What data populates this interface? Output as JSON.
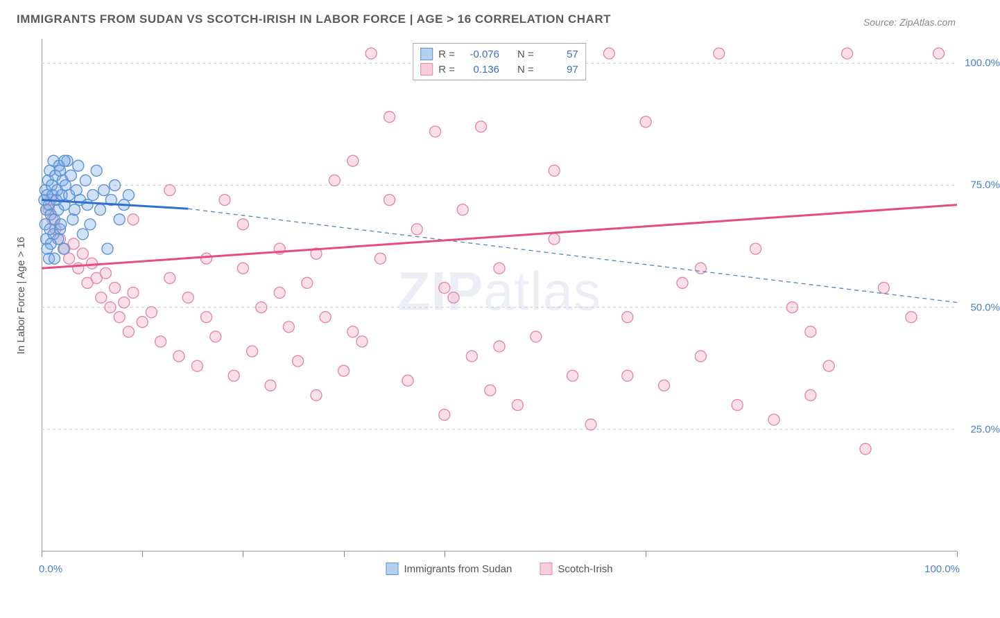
{
  "title": "IMMIGRANTS FROM SUDAN VS SCOTCH-IRISH IN LABOR FORCE | AGE > 16 CORRELATION CHART",
  "source": "Source: ZipAtlas.com",
  "watermark_bold": "ZIP",
  "watermark_rest": "atlas",
  "y_axis_label": "In Labor Force | Age > 16",
  "x_min_label": "0.0%",
  "x_max_label": "100.0%",
  "chart": {
    "type": "scatter",
    "xlim": [
      0,
      100
    ],
    "ylim": [
      0,
      105
    ],
    "y_ticks": [
      25,
      50,
      75,
      100
    ],
    "y_tick_labels": [
      "25.0%",
      "50.0%",
      "75.0%",
      "100.0%"
    ],
    "x_tick_positions": [
      0,
      11,
      22,
      33,
      44,
      66,
      100
    ],
    "grid_color": "#cccccc",
    "border_color": "#999999",
    "background_color": "#ffffff",
    "marker_radius": 8,
    "marker_stroke_width": 1.4,
    "regression_line_width": 3,
    "dashed_line_width": 1.4,
    "series": [
      {
        "name": "Immigrants from Sudan",
        "fill": "rgba(120,170,230,0.35)",
        "stroke": "#5a93d6",
        "swatch_fill": "#b4d2f0",
        "swatch_stroke": "#5a93d6",
        "R": "-0.076",
        "N": "57",
        "regression": {
          "x1": 0,
          "y1": 72,
          "x2": 16,
          "y2": 70.2,
          "color": "#2f6fd0"
        },
        "dashed_ext": {
          "x1": 16,
          "y1": 70.2,
          "x2": 100,
          "y2": 51,
          "color": "#5a8bc8"
        },
        "points": [
          [
            0.3,
            72
          ],
          [
            0.4,
            74
          ],
          [
            0.5,
            70
          ],
          [
            0.6,
            73
          ],
          [
            0.7,
            76
          ],
          [
            0.8,
            71
          ],
          [
            0.9,
            78
          ],
          [
            1.0,
            69
          ],
          [
            1.1,
            75
          ],
          [
            1.2,
            73
          ],
          [
            1.3,
            80
          ],
          [
            1.4,
            68
          ],
          [
            1.5,
            77
          ],
          [
            1.6,
            72
          ],
          [
            1.7,
            74
          ],
          [
            1.8,
            70
          ],
          [
            1.9,
            79
          ],
          [
            2.0,
            66
          ],
          [
            2.1,
            67
          ],
          [
            2.2,
            73
          ],
          [
            2.3,
            76
          ],
          [
            2.4,
            62
          ],
          [
            2.5,
            71
          ],
          [
            2.6,
            75
          ],
          [
            2.8,
            80
          ],
          [
            3.0,
            73
          ],
          [
            3.2,
            77
          ],
          [
            3.4,
            68
          ],
          [
            3.6,
            70
          ],
          [
            3.8,
            74
          ],
          [
            4.0,
            79
          ],
          [
            4.2,
            72
          ],
          [
            4.5,
            65
          ],
          [
            4.8,
            76
          ],
          [
            5.0,
            71
          ],
          [
            5.3,
            67
          ],
          [
            5.6,
            73
          ],
          [
            6.0,
            78
          ],
          [
            6.4,
            70
          ],
          [
            6.8,
            74
          ],
          [
            7.2,
            62
          ],
          [
            7.6,
            72
          ],
          [
            8.0,
            75
          ],
          [
            8.5,
            68
          ],
          [
            9.0,
            71
          ],
          [
            9.5,
            73
          ],
          [
            0.5,
            64
          ],
          [
            0.8,
            60
          ],
          [
            1.0,
            63
          ],
          [
            1.3,
            65
          ],
          [
            2.0,
            78
          ],
          [
            2.5,
            80
          ],
          [
            0.4,
            67
          ],
          [
            0.6,
            62
          ],
          [
            0.9,
            66
          ],
          [
            1.4,
            60
          ],
          [
            1.8,
            64
          ]
        ]
      },
      {
        "name": "Scotch-Irish",
        "fill": "rgba(240,150,180,0.30)",
        "stroke": "#e48aa8",
        "swatch_fill": "#f7cdd9",
        "swatch_stroke": "#e48aa8",
        "R": "0.136",
        "N": "97",
        "regression": {
          "x1": 0,
          "y1": 58,
          "x2": 100,
          "y2": 71,
          "color": "#e64c82"
        },
        "dashed_ext": null,
        "points": [
          [
            0.8,
            70
          ],
          [
            1.2,
            68
          ],
          [
            1.5,
            66
          ],
          [
            2.0,
            64
          ],
          [
            2.5,
            62
          ],
          [
            3.0,
            60
          ],
          [
            3.5,
            63
          ],
          [
            4.0,
            58
          ],
          [
            4.5,
            61
          ],
          [
            5.0,
            55
          ],
          [
            5.5,
            59
          ],
          [
            6.0,
            56
          ],
          [
            6.5,
            52
          ],
          [
            7.0,
            57
          ],
          [
            7.5,
            50
          ],
          [
            8.0,
            54
          ],
          [
            8.5,
            48
          ],
          [
            9.0,
            51
          ],
          [
            9.5,
            45
          ],
          [
            10,
            53
          ],
          [
            11,
            47
          ],
          [
            12,
            49
          ],
          [
            13,
            43
          ],
          [
            14,
            56
          ],
          [
            15,
            40
          ],
          [
            16,
            52
          ],
          [
            17,
            38
          ],
          [
            18,
            60
          ],
          [
            19,
            44
          ],
          [
            20,
            72
          ],
          [
            21,
            36
          ],
          [
            22,
            58
          ],
          [
            23,
            41
          ],
          [
            24,
            50
          ],
          [
            25,
            34
          ],
          [
            26,
            62
          ],
          [
            27,
            46
          ],
          [
            28,
            39
          ],
          [
            29,
            55
          ],
          [
            30,
            32
          ],
          [
            31,
            48
          ],
          [
            32,
            76
          ],
          [
            33,
            37
          ],
          [
            34,
            80
          ],
          [
            35,
            43
          ],
          [
            36,
            102
          ],
          [
            37,
            60
          ],
          [
            38,
            89
          ],
          [
            40,
            35
          ],
          [
            41,
            66
          ],
          [
            42,
            102
          ],
          [
            43,
            86
          ],
          [
            44,
            28
          ],
          [
            45,
            52
          ],
          [
            46,
            70
          ],
          [
            47,
            40
          ],
          [
            48,
            87
          ],
          [
            49,
            33
          ],
          [
            50,
            58
          ],
          [
            52,
            30
          ],
          [
            54,
            44
          ],
          [
            56,
            78
          ],
          [
            58,
            36
          ],
          [
            60,
            26
          ],
          [
            62,
            102
          ],
          [
            64,
            48
          ],
          [
            66,
            88
          ],
          [
            68,
            34
          ],
          [
            70,
            55
          ],
          [
            72,
            40
          ],
          [
            74,
            102
          ],
          [
            76,
            30
          ],
          [
            78,
            62
          ],
          [
            80,
            27
          ],
          [
            82,
            50
          ],
          [
            84,
            45
          ],
          [
            86,
            38
          ],
          [
            88,
            102
          ],
          [
            90,
            21
          ],
          [
            92,
            54
          ],
          [
            95,
            48
          ],
          [
            98,
            102
          ],
          [
            10,
            68
          ],
          [
            14,
            74
          ],
          [
            18,
            48
          ],
          [
            22,
            67
          ],
          [
            26,
            53
          ],
          [
            30,
            61
          ],
          [
            34,
            45
          ],
          [
            38,
            72
          ],
          [
            44,
            54
          ],
          [
            50,
            42
          ],
          [
            56,
            64
          ],
          [
            64,
            36
          ],
          [
            72,
            58
          ],
          [
            84,
            32
          ],
          [
            1.0,
            72
          ]
        ]
      }
    ]
  },
  "legend_top": {
    "r_label": "R =",
    "n_label": "N ="
  }
}
